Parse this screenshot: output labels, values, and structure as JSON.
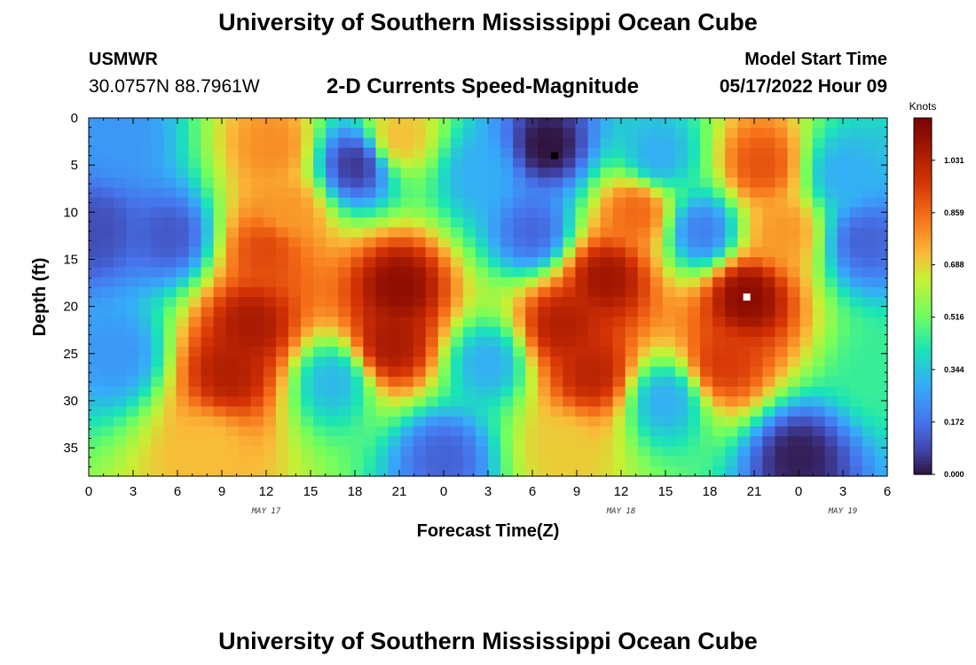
{
  "header": {
    "title": "University of Southern Mississippi Ocean Cube",
    "station": "USMWR",
    "coords": "30.0757N  88.7961W",
    "subtitle": "2-D Currents Speed-Magnitude",
    "model_label": "Model Start Time",
    "model_time": "05/17/2022 Hour 09"
  },
  "footer": {
    "title": "University of Southern Mississippi Ocean Cube"
  },
  "chart_data": {
    "type": "heatmap",
    "title": "2-D Currents Speed-Magnitude",
    "xlabel": "Forecast Time(Z)",
    "ylabel": "Depth (ft)",
    "x_range_hours": [
      0,
      54
    ],
    "y_range_ft": [
      0,
      38
    ],
    "y_inverted": true,
    "x_tick_labels": [
      "0",
      "3",
      "6",
      "9",
      "12",
      "15",
      "18",
      "21",
      "0",
      "3",
      "6",
      "9",
      "12",
      "15",
      "18",
      "21",
      "0",
      "3",
      "6"
    ],
    "date_labels": [
      {
        "label": "MAY 17",
        "hour": 12
      },
      {
        "label": "MAY 18",
        "hour": 36
      },
      {
        "label": "MAY 19",
        "hour": 51
      }
    ],
    "y_ticks": [
      0,
      5,
      10,
      15,
      20,
      25,
      30,
      35
    ],
    "colorbar": {
      "unit": "Knots",
      "range": [
        0,
        1.17
      ],
      "ticks": [
        "0.000",
        "0.172",
        "0.344",
        "0.516",
        "0.688",
        "0.859",
        "1.031"
      ]
    },
    "min_marker": {
      "hour": 31.5,
      "depth": 4,
      "color": "#000000"
    },
    "max_marker": {
      "hour": 44.5,
      "depth": 19,
      "color": "#ffffff"
    },
    "features": [
      {
        "hour": 2,
        "depth": 2,
        "value": 0.25
      },
      {
        "hour": 0.5,
        "depth": 12,
        "value": 0.1
      },
      {
        "hour": 5.5,
        "depth": 12.5,
        "value": 0.12
      },
      {
        "hour": 2,
        "depth": 25,
        "value": 0.25
      },
      {
        "hour": 11,
        "depth": 22,
        "value": 1.06
      },
      {
        "hour": 9.5,
        "depth": 27,
        "value": 1.04
      },
      {
        "hour": 12.5,
        "depth": 3,
        "value": 0.8
      },
      {
        "hour": 12,
        "depth": 14,
        "value": 0.92
      },
      {
        "hour": 18,
        "depth": 5,
        "value": 0.06
      },
      {
        "hour": 21,
        "depth": 18,
        "value": 1.12
      },
      {
        "hour": 20.5,
        "depth": 24,
        "value": 1.06
      },
      {
        "hour": 21,
        "depth": 2,
        "value": 0.72
      },
      {
        "hour": 16.5,
        "depth": 28,
        "value": 0.32
      },
      {
        "hour": 24,
        "depth": 36,
        "value": 0.14
      },
      {
        "hour": 26.5,
        "depth": 6,
        "value": 0.3
      },
      {
        "hour": 31,
        "depth": 3,
        "value": 0.0
      },
      {
        "hour": 30,
        "depth": 12,
        "value": 0.15
      },
      {
        "hour": 32,
        "depth": 22,
        "value": 1.04
      },
      {
        "hour": 35,
        "depth": 17,
        "value": 1.08
      },
      {
        "hour": 34,
        "depth": 27,
        "value": 1.02
      },
      {
        "hour": 38.5,
        "depth": 4,
        "value": 0.3
      },
      {
        "hour": 41.5,
        "depth": 12,
        "value": 0.2
      },
      {
        "hour": 39,
        "depth": 30,
        "value": 0.3
      },
      {
        "hour": 44.5,
        "depth": 19,
        "value": 1.13
      },
      {
        "hour": 45.5,
        "depth": 5,
        "value": 0.9
      },
      {
        "hour": 47,
        "depth": 12,
        "value": 0.78
      },
      {
        "hour": 43,
        "depth": 26,
        "value": 0.95
      },
      {
        "hour": 48,
        "depth": 36,
        "value": 0.02
      },
      {
        "hour": 51,
        "depth": 6,
        "value": 0.3
      },
      {
        "hour": 52.5,
        "depth": 13,
        "value": 0.14
      },
      {
        "hour": 53.5,
        "depth": 27,
        "value": 0.45
      },
      {
        "hour": 27,
        "depth": 26,
        "value": 0.3
      },
      {
        "hour": 8,
        "depth": 35,
        "value": 0.72
      },
      {
        "hour": 32,
        "depth": 35,
        "value": 0.7
      },
      {
        "hour": 13.5,
        "depth": 10,
        "value": 0.78
      },
      {
        "hour": 37,
        "depth": 10,
        "value": 0.86
      }
    ]
  }
}
